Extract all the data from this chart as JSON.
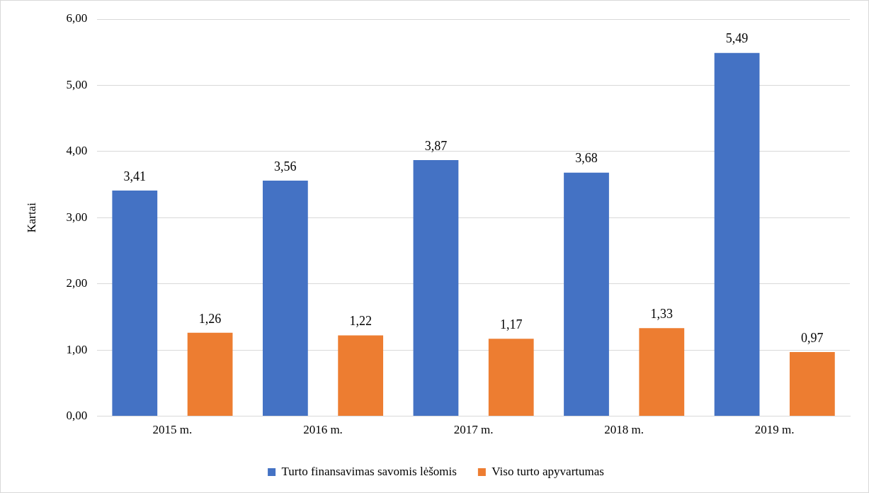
{
  "chart_data": {
    "type": "bar",
    "ylabel": "Kartai",
    "categories": [
      "2015 m.",
      "2016 m.",
      "2017 m.",
      "2018 m.",
      "2019 m."
    ],
    "series": [
      {
        "name": "Turto finansavimas savomis lėšomis",
        "color": "#4472c4",
        "values": [
          3.41,
          3.56,
          3.87,
          3.68,
          5.49
        ],
        "value_labels": [
          "3,41",
          "3,56",
          "3,87",
          "3,68",
          "5,49"
        ]
      },
      {
        "name": "Viso turto apyvartumas",
        "color": "#ed7d31",
        "values": [
          1.26,
          1.22,
          1.17,
          1.33,
          0.97
        ],
        "value_labels": [
          "1,26",
          "1,22",
          "1,17",
          "1,33",
          "0,97"
        ]
      }
    ],
    "ylim": [
      0,
      6
    ],
    "yticks": [
      {
        "value": 0,
        "label": "0,00"
      },
      {
        "value": 1,
        "label": "1,00"
      },
      {
        "value": 2,
        "label": "2,00"
      },
      {
        "value": 3,
        "label": "3,00"
      },
      {
        "value": 4,
        "label": "4,00"
      },
      {
        "value": 5,
        "label": "5,00"
      },
      {
        "value": 6,
        "label": "6,00"
      }
    ],
    "grid": "y",
    "legend": "bottom"
  }
}
